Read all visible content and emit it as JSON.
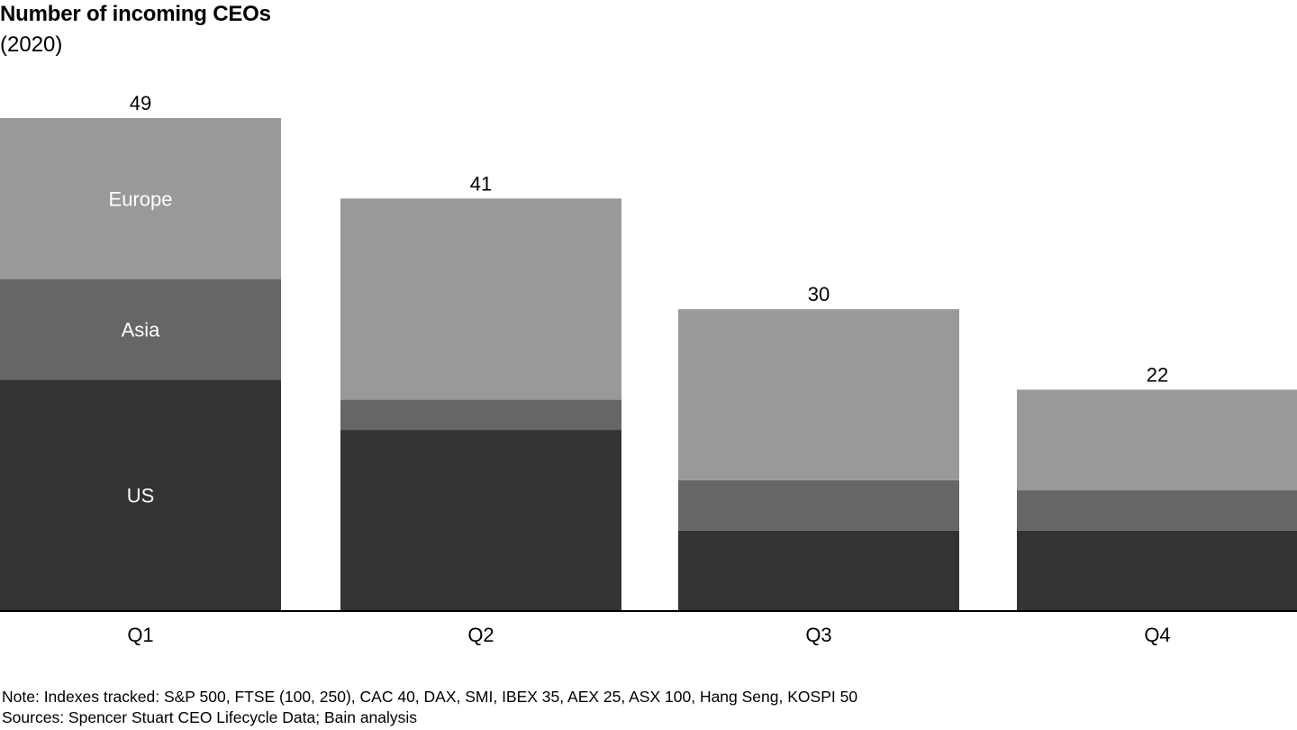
{
  "chart_data": {
    "type": "bar",
    "stacked": true,
    "title": "Number of incoming CEOs",
    "subtitle": "(2020)",
    "categories": [
      "Q1",
      "Q2",
      "Q3",
      "Q4"
    ],
    "series": [
      {
        "name": "US",
        "values": [
          23,
          18,
          8,
          8
        ],
        "color": "#333333"
      },
      {
        "name": "Asia",
        "values": [
          10,
          3,
          5,
          4
        ],
        "color": "#666666"
      },
      {
        "name": "Europe",
        "values": [
          16,
          20,
          17,
          10
        ],
        "color": "#999999"
      }
    ],
    "totals": [
      49,
      41,
      30,
      22
    ],
    "legend": "inline labels on first bar",
    "grid": false,
    "ylim": [
      0,
      49
    ]
  },
  "notes": {
    "note": "Note: Indexes tracked: S&P 500, FTSE (100, 250), CAC 40, DAX, SMI, IBEX 35, AEX 25, ASX 100, Hang Seng, KOSPI 50",
    "sources": "Sources: Spencer Stuart CEO Lifecycle Data; Bain analysis"
  }
}
